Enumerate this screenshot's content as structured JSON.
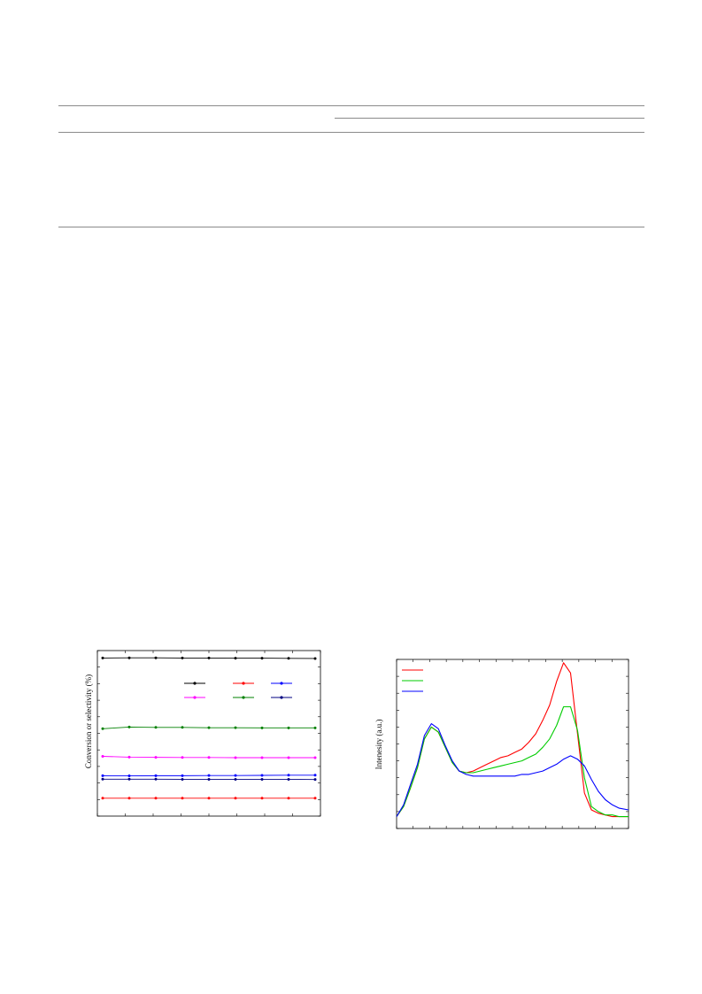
{
  "table": {
    "rules": [
      "top",
      "group",
      "header",
      "bottom"
    ]
  },
  "chart_data": [
    {
      "type": "line",
      "ylabel": "Conversion or selectivity (%)",
      "ylim": [
        0,
        100
      ],
      "grid": false,
      "legend_position": "upper-middle",
      "x": [
        1,
        2,
        3,
        4,
        5,
        6,
        7,
        8,
        9
      ],
      "series": [
        {
          "color": "#000000",
          "values": [
            95.5,
            95.6,
            95.6,
            95.5,
            95.5,
            95.4,
            95.4,
            95.3,
            95.2
          ]
        },
        {
          "color": "#008000",
          "values": [
            52.8,
            53.8,
            53.6,
            53.6,
            53.4,
            53.4,
            53.3,
            53.3,
            53.3
          ]
        },
        {
          "color": "#ff00ff",
          "values": [
            36.1,
            35.6,
            35.5,
            35.4,
            35.4,
            35.3,
            35.3,
            35.3,
            35.3
          ]
        },
        {
          "color": "#0000ff",
          "values": [
            24.4,
            24.3,
            24.4,
            24.4,
            24.5,
            24.5,
            24.6,
            24.7,
            24.7
          ]
        },
        {
          "color": "#000080",
          "values": [
            22.3,
            22.3,
            22.3,
            22.2,
            22.2,
            22.2,
            22.2,
            22.2,
            22.1
          ]
        },
        {
          "color": "#ff0000",
          "values": [
            10.8,
            10.8,
            10.8,
            10.8,
            10.8,
            10.8,
            10.8,
            10.8,
            10.8
          ]
        }
      ],
      "legend_markers": [
        "#000000",
        "#ff0000",
        "#0000ff",
        "#ff00ff",
        "#008000",
        "#000080"
      ]
    },
    {
      "type": "line",
      "ylabel": "Intenesity (a.u.)",
      "ylim": [
        0,
        100
      ],
      "grid": false,
      "legend_position": "top-left",
      "x": [
        0,
        3,
        6,
        9,
        12,
        15,
        18,
        21,
        24,
        27,
        30,
        33,
        36,
        39,
        42,
        45,
        48,
        51,
        54,
        57,
        60,
        63,
        66,
        69,
        72,
        75,
        78,
        81,
        84,
        87,
        90,
        93,
        96,
        100
      ],
      "series": [
        {
          "color": "#ff0000",
          "values": [
            7,
            13,
            24,
            36,
            53,
            60,
            57,
            48,
            39,
            34,
            33,
            34,
            36,
            38,
            40,
            42,
            43,
            45,
            47,
            51,
            56,
            64,
            73,
            87,
            98,
            92,
            56,
            21,
            11,
            9,
            8,
            7,
            7,
            7
          ]
        },
        {
          "color": "#00cc00",
          "values": [
            7,
            13,
            24,
            36,
            53,
            60,
            57,
            48,
            39,
            34,
            33,
            33,
            34,
            35,
            36,
            37,
            38,
            39,
            40,
            42,
            44,
            48,
            53,
            61,
            72,
            72,
            58,
            30,
            13,
            10,
            8,
            8,
            7,
            7
          ]
        },
        {
          "color": "#0000ff",
          "values": [
            7,
            14,
            26,
            38,
            55,
            62,
            59,
            49,
            40,
            34,
            32,
            31,
            31,
            31,
            31,
            31,
            31,
            31,
            32,
            32,
            33,
            34,
            36,
            38,
            41,
            43,
            41,
            37,
            29,
            22,
            17,
            14,
            12,
            11
          ]
        }
      ],
      "legend_markers": [
        "#ff0000",
        "#00cc00",
        "#0000ff"
      ]
    }
  ]
}
